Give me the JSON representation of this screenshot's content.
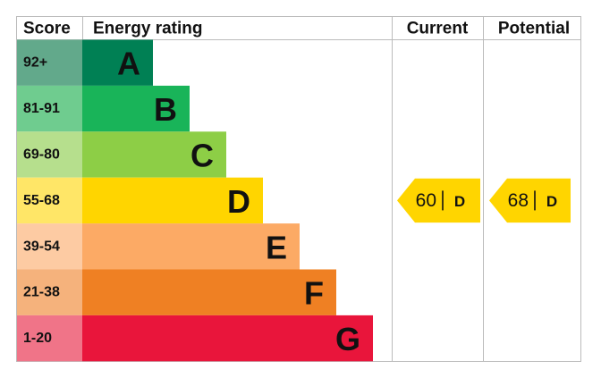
{
  "header": {
    "score": "Score",
    "energy_rating": "Energy rating",
    "current": "Current",
    "potential": "Potential"
  },
  "bands": [
    {
      "score": "92+",
      "letter": "A",
      "color": "#008054",
      "score_color": "#62a98b"
    },
    {
      "score": "81-91",
      "letter": "B",
      "color": "#19b459",
      "score_color": "#6fcc8f"
    },
    {
      "score": "69-80",
      "letter": "C",
      "color": "#8dce46",
      "score_color": "#b6df8d"
    },
    {
      "score": "55-68",
      "letter": "D",
      "color": "#ffd500",
      "score_color": "#ffe667"
    },
    {
      "score": "39-54",
      "letter": "E",
      "color": "#fcaa65",
      "score_color": "#fdcba3"
    },
    {
      "score": "21-38",
      "letter": "F",
      "color": "#ef8023",
      "score_color": "#f5b27c"
    },
    {
      "score": "1-20",
      "letter": "G",
      "color": "#e9153b",
      "score_color": "#f07488"
    }
  ],
  "current": {
    "value": 60,
    "rating": "D"
  },
  "potential": {
    "value": 68,
    "rating": "D"
  }
}
